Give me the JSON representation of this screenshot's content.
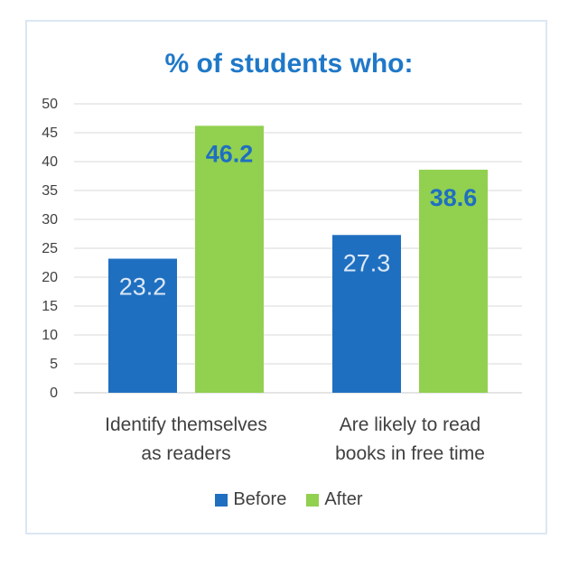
{
  "chart_data": {
    "type": "bar",
    "title": "% of students who:",
    "categories": [
      [
        "Identify themselves",
        "as readers"
      ],
      [
        "Are likely to read",
        "books in free time"
      ]
    ],
    "series": [
      {
        "name": "Before",
        "values": [
          23.2,
          27.3
        ],
        "color": "#1f6fc1",
        "label_color": "#dce8f5",
        "label_bold": false
      },
      {
        "name": "After",
        "values": [
          46.2,
          38.6
        ],
        "color": "#92d050",
        "label_color": "#1f6fc1",
        "label_bold": true
      }
    ],
    "ylim": [
      0,
      50
    ],
    "yticks": [
      0,
      5,
      10,
      15,
      20,
      25,
      30,
      35,
      40,
      45,
      50
    ],
    "grid": true,
    "legend": "bottom"
  }
}
